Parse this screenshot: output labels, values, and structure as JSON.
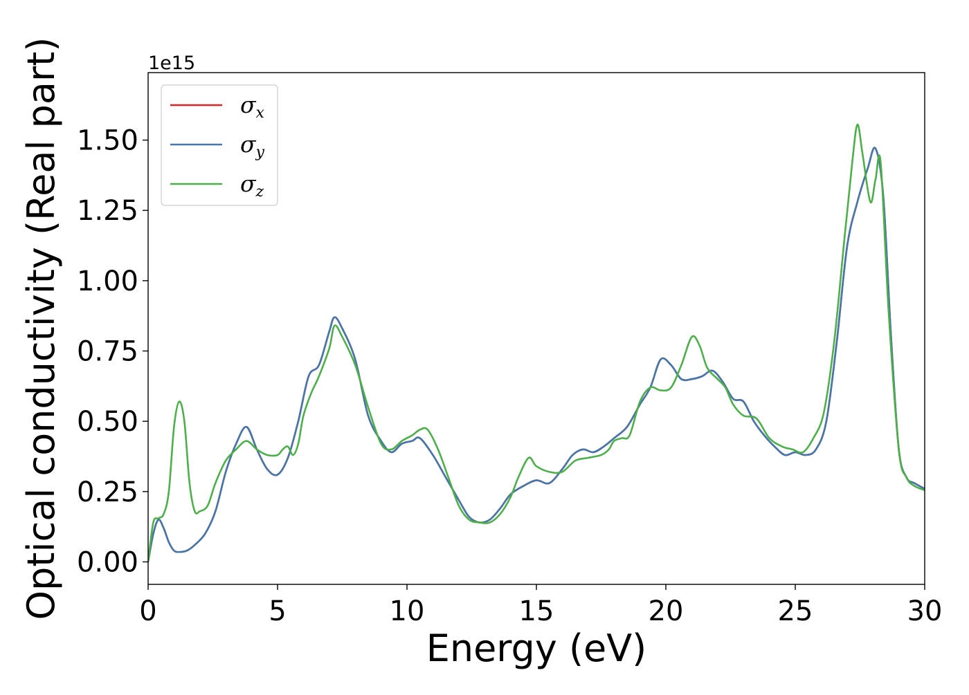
{
  "chart_data": {
    "type": "line",
    "xlabel": "Energy (eV)",
    "ylabel": "Optical conductivity (Real part)",
    "y_offset_text": "1e15",
    "xlim": [
      0,
      30
    ],
    "ylim": [
      -0.08,
      1.74
    ],
    "x_ticks": [
      0,
      5,
      10,
      15,
      20,
      25,
      30
    ],
    "x_tick_labels": [
      "0",
      "5",
      "10",
      "15",
      "20",
      "25",
      "30"
    ],
    "y_ticks": [
      0,
      0.25,
      0.5,
      0.75,
      1.0,
      1.25,
      1.5
    ],
    "y_tick_labels": [
      "0.00",
      "0.25",
      "0.50",
      "0.75",
      "1.00",
      "1.25",
      "1.50"
    ],
    "grid": false,
    "legend_position": "top-left",
    "series": [
      {
        "name": "σx",
        "legend_symbol": "σ",
        "legend_subscript": "x",
        "color": "#d62728",
        "x": [
          0,
          0.2,
          0.4,
          0.6,
          0.8,
          1.0,
          1.2,
          1.5,
          1.8,
          2.2,
          2.6,
          3.0,
          3.4,
          3.8,
          4.2,
          4.6,
          5.0,
          5.4,
          5.8,
          6.2,
          6.6,
          7.0,
          7.2,
          7.5,
          8.0,
          8.5,
          9.0,
          9.4,
          9.8,
          10.2,
          10.5,
          11.0,
          11.5,
          12.0,
          12.4,
          12.8,
          13.2,
          13.6,
          14.0,
          14.5,
          15.0,
          15.5,
          16.0,
          16.4,
          16.8,
          17.2,
          17.6,
          18.0,
          18.5,
          19.0,
          19.4,
          19.8,
          20.2,
          20.6,
          21.0,
          21.4,
          21.8,
          22.2,
          22.6,
          23.0,
          23.4,
          23.8,
          24.2,
          24.6,
          25.0,
          25.4,
          25.8,
          26.2,
          26.6,
          27.0,
          27.4,
          27.8,
          28.1,
          28.4,
          28.7,
          29.0,
          29.3,
          29.6,
          30.0
        ],
        "y": [
          0.0,
          0.1,
          0.15,
          0.12,
          0.07,
          0.04,
          0.035,
          0.04,
          0.06,
          0.1,
          0.18,
          0.32,
          0.42,
          0.48,
          0.4,
          0.33,
          0.31,
          0.37,
          0.5,
          0.66,
          0.7,
          0.82,
          0.87,
          0.83,
          0.72,
          0.52,
          0.43,
          0.39,
          0.42,
          0.43,
          0.44,
          0.38,
          0.3,
          0.22,
          0.16,
          0.14,
          0.15,
          0.19,
          0.24,
          0.27,
          0.29,
          0.28,
          0.33,
          0.38,
          0.4,
          0.39,
          0.41,
          0.44,
          0.48,
          0.56,
          0.62,
          0.72,
          0.7,
          0.65,
          0.65,
          0.66,
          0.68,
          0.64,
          0.58,
          0.57,
          0.5,
          0.45,
          0.41,
          0.38,
          0.39,
          0.38,
          0.4,
          0.5,
          0.78,
          1.12,
          1.28,
          1.4,
          1.47,
          1.3,
          0.8,
          0.4,
          0.3,
          0.28,
          0.26
        ]
      },
      {
        "name": "σy",
        "legend_symbol": "σ",
        "legend_subscript": "y",
        "color": "#4477aa",
        "x": [
          0,
          0.2,
          0.4,
          0.6,
          0.8,
          1.0,
          1.2,
          1.5,
          1.8,
          2.2,
          2.6,
          3.0,
          3.4,
          3.8,
          4.2,
          4.6,
          5.0,
          5.4,
          5.8,
          6.2,
          6.6,
          7.0,
          7.2,
          7.5,
          8.0,
          8.5,
          9.0,
          9.4,
          9.8,
          10.2,
          10.5,
          11.0,
          11.5,
          12.0,
          12.4,
          12.8,
          13.2,
          13.6,
          14.0,
          14.5,
          15.0,
          15.5,
          16.0,
          16.4,
          16.8,
          17.2,
          17.6,
          18.0,
          18.5,
          19.0,
          19.4,
          19.8,
          20.2,
          20.6,
          21.0,
          21.4,
          21.8,
          22.2,
          22.6,
          23.0,
          23.4,
          23.8,
          24.2,
          24.6,
          25.0,
          25.4,
          25.8,
          26.2,
          26.6,
          27.0,
          27.4,
          27.8,
          28.1,
          28.4,
          28.7,
          29.0,
          29.3,
          29.6,
          30.0
        ],
        "y": [
          0.0,
          0.1,
          0.15,
          0.12,
          0.07,
          0.04,
          0.035,
          0.04,
          0.06,
          0.1,
          0.18,
          0.32,
          0.42,
          0.48,
          0.4,
          0.33,
          0.31,
          0.37,
          0.5,
          0.66,
          0.7,
          0.82,
          0.87,
          0.83,
          0.72,
          0.52,
          0.43,
          0.39,
          0.42,
          0.43,
          0.44,
          0.38,
          0.3,
          0.22,
          0.16,
          0.14,
          0.15,
          0.19,
          0.24,
          0.27,
          0.29,
          0.28,
          0.33,
          0.38,
          0.4,
          0.39,
          0.41,
          0.44,
          0.48,
          0.56,
          0.62,
          0.72,
          0.7,
          0.65,
          0.65,
          0.66,
          0.68,
          0.64,
          0.58,
          0.57,
          0.5,
          0.45,
          0.41,
          0.38,
          0.39,
          0.38,
          0.4,
          0.5,
          0.78,
          1.12,
          1.28,
          1.4,
          1.47,
          1.3,
          0.8,
          0.4,
          0.3,
          0.28,
          0.26
        ]
      },
      {
        "name": "σz",
        "legend_symbol": "σ",
        "legend_subscript": "z",
        "color": "#4daf4a",
        "x": [
          0,
          0.2,
          0.4,
          0.6,
          0.8,
          1.0,
          1.2,
          1.4,
          1.6,
          1.8,
          2.0,
          2.3,
          2.6,
          3.0,
          3.4,
          3.8,
          4.2,
          4.6,
          5.0,
          5.2,
          5.4,
          5.6,
          5.8,
          6.0,
          6.3,
          6.6,
          7.0,
          7.2,
          7.5,
          8.0,
          8.5,
          9.0,
          9.4,
          9.8,
          10.2,
          10.5,
          10.8,
          11.2,
          11.6,
          12.0,
          12.4,
          12.8,
          13.2,
          13.6,
          14.0,
          14.3,
          14.7,
          15.0,
          15.5,
          16.0,
          16.5,
          17.0,
          17.5,
          17.8,
          18.0,
          18.3,
          18.6,
          19.0,
          19.4,
          19.8,
          20.2,
          20.6,
          21.0,
          21.3,
          21.6,
          22.0,
          22.3,
          22.6,
          23.0,
          23.5,
          24.0,
          24.5,
          24.9,
          25.3,
          25.7,
          26.1,
          26.5,
          26.9,
          27.2,
          27.4,
          27.6,
          27.9,
          28.1,
          28.3,
          28.6,
          29.0,
          29.3,
          29.6,
          30.0
        ],
        "y": [
          0.0,
          0.14,
          0.155,
          0.17,
          0.25,
          0.48,
          0.57,
          0.5,
          0.28,
          0.18,
          0.18,
          0.2,
          0.28,
          0.36,
          0.4,
          0.43,
          0.4,
          0.38,
          0.38,
          0.4,
          0.41,
          0.38,
          0.42,
          0.52,
          0.6,
          0.66,
          0.76,
          0.84,
          0.8,
          0.7,
          0.55,
          0.42,
          0.4,
          0.43,
          0.45,
          0.47,
          0.47,
          0.4,
          0.3,
          0.2,
          0.15,
          0.14,
          0.14,
          0.17,
          0.23,
          0.3,
          0.37,
          0.34,
          0.32,
          0.32,
          0.36,
          0.37,
          0.38,
          0.4,
          0.43,
          0.44,
          0.45,
          0.57,
          0.62,
          0.61,
          0.62,
          0.7,
          0.8,
          0.77,
          0.69,
          0.65,
          0.62,
          0.56,
          0.52,
          0.51,
          0.44,
          0.41,
          0.4,
          0.39,
          0.44,
          0.53,
          0.78,
          1.15,
          1.42,
          1.555,
          1.45,
          1.28,
          1.36,
          1.42,
          0.9,
          0.4,
          0.3,
          0.27,
          0.255
        ]
      }
    ]
  }
}
